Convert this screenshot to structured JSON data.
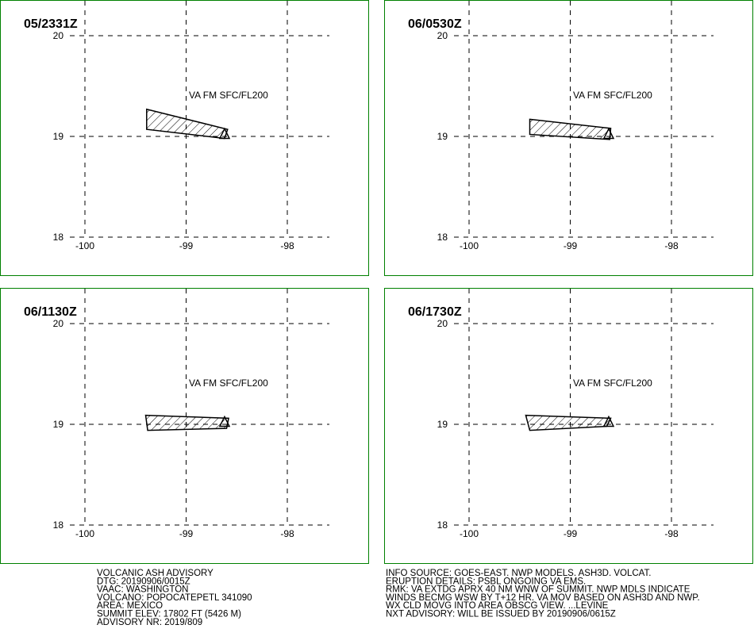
{
  "panels": [
    {
      "time": "05/2331Z",
      "label": "VA FM SFC/FL200",
      "lat_ticks": [
        20,
        19,
        18
      ],
      "lon_ticks": [
        -100,
        -99,
        -98
      ],
      "ash_lon": [
        -99.39,
        -98.59,
        -98.62,
        -99.39
      ],
      "ash_lat": [
        19.27,
        19.07,
        18.98,
        19.07
      ]
    },
    {
      "time": "06/0530Z",
      "label": "VA FM SFC/FL200",
      "lat_ticks": [
        20,
        19,
        18
      ],
      "lon_ticks": [
        -100,
        -99,
        -98
      ],
      "ash_lon": [
        -99.4,
        -98.6,
        -98.61,
        -99.4
      ],
      "ash_lat": [
        19.17,
        19.08,
        18.97,
        19.02
      ]
    },
    {
      "time": "06/1130Z",
      "label": "VA FM SFC/FL200",
      "lat_ticks": [
        20,
        19,
        18
      ],
      "lon_ticks": [
        -100,
        -99,
        -98
      ],
      "ash_lon": [
        -99.4,
        -98.58,
        -98.6,
        -99.38
      ],
      "ash_lat": [
        19.09,
        19.06,
        18.96,
        18.94
      ]
    },
    {
      "time": "06/1730Z",
      "label": "VA FM SFC/FL200",
      "lat_ticks": [
        20,
        19,
        18
      ],
      "lon_ticks": [
        -100,
        -99,
        -98
      ],
      "ash_lon": [
        -99.44,
        -98.6,
        -98.64,
        -99.4
      ],
      "ash_lat": [
        19.09,
        19.06,
        18.98,
        18.94
      ]
    }
  ],
  "volcano_marker": {
    "lon": -98.62,
    "lat": 19.02
  },
  "advisory_left": [
    "VOLCANIC ASH ADVISORY",
    "DTG: 20190906/0015Z",
    "VAAC: WASHINGTON",
    "VOLCANO: POPOCATEPETL 341090",
    "AREA: MEXICO",
    "SUMMIT ELEV: 17802 FT (5426 M)",
    "ADVISORY NR: 2019/809"
  ],
  "advisory_right": [
    "INFO SOURCE: GOES-EAST. NWP MODELS. ASH3D. VOLCAT.",
    "ERUPTION DETAILS: PSBL ONGOING VA EMS.",
    "RMK: VA EXTDG APRX 40 NM WNW OF SUMMIT. NWP MDLS INDICATE",
    "WINDS BECMG WSW BY T+12 HR. VA MOV BASED ON ASH3D AND NWP.",
    "WX CLD MOVG INTO AREA OBSCG VIEW. ...LEVINE",
    "NXT ADVISORY: WILL BE ISSUED BY 20190906/0615Z"
  ]
}
